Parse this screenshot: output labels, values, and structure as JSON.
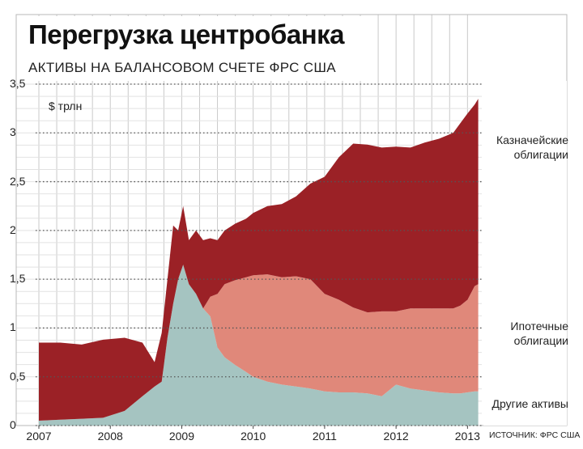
{
  "title": "Перегрузка центробанка",
  "subtitle": "АКТИВЫ НА БАЛАНСОВОМ СЧЕТЕ ФРС США",
  "unit": "$ трлн",
  "source": "ИСТОЧНИК: ФРС США",
  "colors": {
    "treasury": "#9b2126",
    "mortgage": "#e0887a",
    "other": "#a5c4c1",
    "grid": "#c9c9c9",
    "frame": "#b8b8b8"
  },
  "chart_data": {
    "type": "area",
    "stacked": true,
    "ylim": [
      0,
      3.5
    ],
    "xlim": [
      2007,
      2013.2
    ],
    "yticks": [
      "0",
      "0,5",
      "1",
      "1,5",
      "2",
      "2,5",
      "3",
      "3,5"
    ],
    "xticks": [
      "2007",
      "2008",
      "2009",
      "2010",
      "2011",
      "2012",
      "2013"
    ],
    "x": [
      2007.0,
      2007.3,
      2007.6,
      2007.9,
      2008.2,
      2008.45,
      2008.62,
      2008.72,
      2008.8,
      2008.88,
      2008.95,
      2009.02,
      2009.1,
      2009.2,
      2009.3,
      2009.4,
      2009.5,
      2009.6,
      2009.75,
      2009.9,
      2010.0,
      2010.2,
      2010.4,
      2010.6,
      2010.8,
      2011.0,
      2011.2,
      2011.4,
      2011.6,
      2011.8,
      2012.0,
      2012.2,
      2012.4,
      2012.6,
      2012.8,
      2012.9,
      2013.0,
      2013.1,
      2013.15
    ],
    "series": [
      {
        "name": "Другие активы",
        "values": [
          0.05,
          0.06,
          0.07,
          0.08,
          0.15,
          0.3,
          0.4,
          0.45,
          0.9,
          1.25,
          1.5,
          1.65,
          1.45,
          1.35,
          1.2,
          1.12,
          0.8,
          0.7,
          0.62,
          0.55,
          0.5,
          0.45,
          0.42,
          0.4,
          0.38,
          0.35,
          0.34,
          0.34,
          0.33,
          0.3,
          0.42,
          0.38,
          0.36,
          0.34,
          0.33,
          0.33,
          0.34,
          0.35,
          0.35
        ]
      },
      {
        "name": "Ипотечные облигации",
        "values": [
          0.0,
          0.0,
          0.0,
          0.0,
          0.0,
          0.0,
          0.0,
          0.0,
          0.0,
          0.0,
          0.0,
          0.0,
          0.0,
          0.0,
          0.0,
          0.2,
          0.55,
          0.75,
          0.87,
          0.97,
          1.04,
          1.1,
          1.1,
          1.13,
          1.12,
          1.0,
          0.95,
          0.87,
          0.83,
          0.87,
          0.75,
          0.82,
          0.84,
          0.86,
          0.87,
          0.9,
          0.95,
          1.08,
          1.1
        ]
      },
      {
        "name": "Казначейские облигации",
        "values": [
          0.8,
          0.79,
          0.76,
          0.8,
          0.75,
          0.55,
          0.25,
          0.5,
          0.6,
          0.8,
          0.5,
          0.6,
          0.45,
          0.65,
          0.7,
          0.6,
          0.55,
          0.55,
          0.58,
          0.6,
          0.64,
          0.7,
          0.75,
          0.82,
          0.98,
          1.2,
          1.46,
          1.68,
          1.72,
          1.68,
          1.69,
          1.65,
          1.7,
          1.74,
          1.8,
          1.87,
          1.91,
          1.86,
          1.9
        ]
      }
    ]
  }
}
